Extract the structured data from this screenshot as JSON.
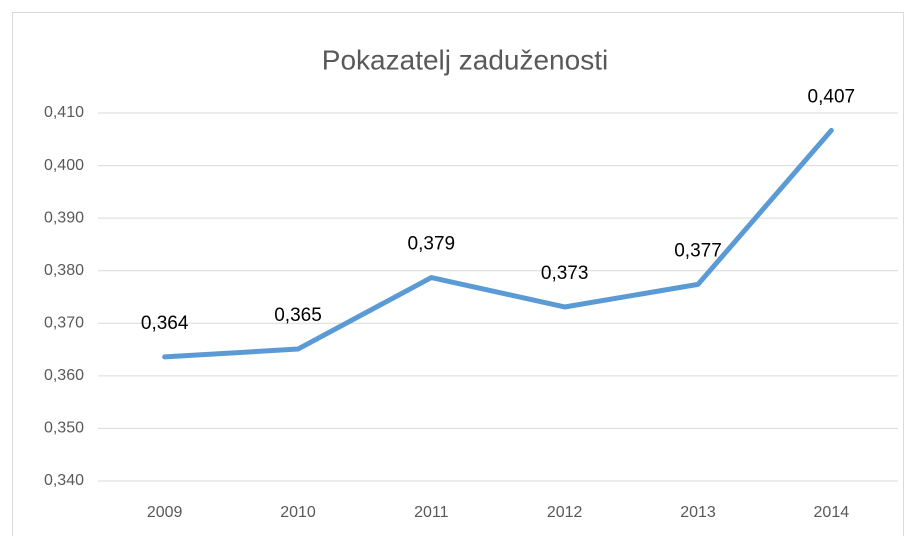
{
  "chart_data": {
    "type": "line",
    "title": "Pokazatelj zaduženosti",
    "categories": [
      "2009",
      "2010",
      "2011",
      "2012",
      "2013",
      "2014"
    ],
    "series": [
      {
        "name": "Pokazatelj zaduženosti",
        "color": "#5b9bd5",
        "values": [
          0.3636,
          0.3651,
          0.3787,
          0.3731,
          0.3774,
          0.4067
        ],
        "value_labels": [
          "0,364",
          "0,365",
          "0,379",
          "0,373",
          "0,377",
          "0,407"
        ]
      }
    ],
    "ylim": [
      0.34,
      0.41
    ],
    "yticks": [
      {
        "value": 0.34,
        "label": "0,340"
      },
      {
        "value": 0.35,
        "label": "0,350"
      },
      {
        "value": 0.36,
        "label": "0,360"
      },
      {
        "value": 0.37,
        "label": "0,370"
      },
      {
        "value": 0.38,
        "label": "0,380"
      },
      {
        "value": 0.39,
        "label": "0,390"
      },
      {
        "value": 0.4,
        "label": "0,400"
      },
      {
        "value": 0.41,
        "label": "0,410"
      }
    ],
    "grid": true
  }
}
